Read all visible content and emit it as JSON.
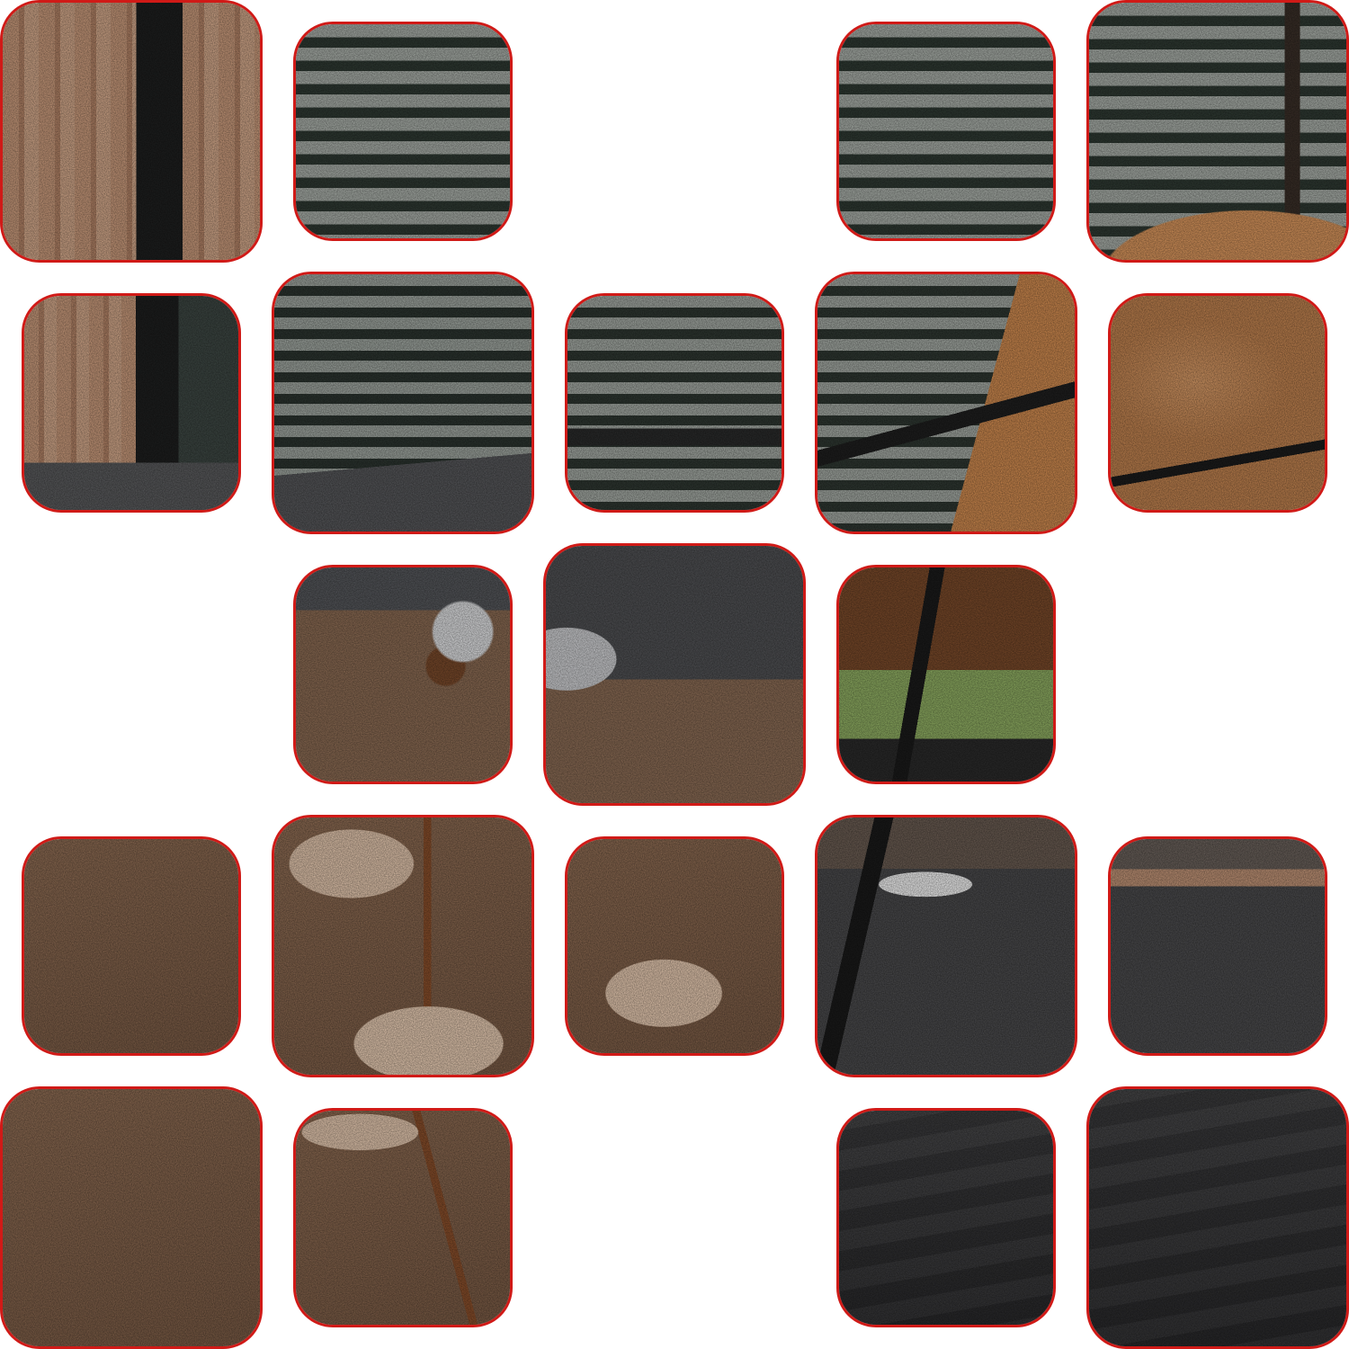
{
  "puzzle": {
    "type": "sliding-tile-puzzle",
    "rows": 5,
    "cols": 5,
    "empty_cells": [
      [
        0,
        2
      ],
      [
        2,
        0
      ],
      [
        2,
        4
      ],
      [
        4,
        2
      ]
    ],
    "colors": {
      "tile_border": "#d01a17",
      "background": "#ffffff",
      "wood": "#c89a7a",
      "blinds_light": "#9aa19a",
      "blinds_dark": "#2f3a33",
      "sofa_grey": "#4e4f51",
      "leather_tan": "#c98a55",
      "fabric_brown": "#8a6a52",
      "cotton_cream": "#e6c7ad",
      "floor_grey": "#3f3f41"
    },
    "tiles": [
      {
        "row": 0,
        "col": 0,
        "size": "large",
        "content": "wood-slats-and-window"
      },
      {
        "row": 0,
        "col": 1,
        "size": "small",
        "content": "window-blinds"
      },
      {
        "row": 0,
        "col": 3,
        "size": "small",
        "content": "window-blinds"
      },
      {
        "row": 0,
        "col": 4,
        "size": "large",
        "content": "blinds-and-tan-chair"
      },
      {
        "row": 1,
        "col": 0,
        "size": "small",
        "content": "wood-slats-and-sofa-edge"
      },
      {
        "row": 1,
        "col": 1,
        "size": "large",
        "content": "blinds-and-sofa-top"
      },
      {
        "row": 1,
        "col": 2,
        "size": "small",
        "content": "blinds-and-table-edge"
      },
      {
        "row": 1,
        "col": 3,
        "size": "large",
        "content": "blinds-and-chair-armrest"
      },
      {
        "row": 1,
        "col": 4,
        "size": "small",
        "content": "tan-chair-cushion"
      },
      {
        "row": 2,
        "col": 1,
        "size": "small",
        "content": "cotton-embroidery-top"
      },
      {
        "row": 2,
        "col": 2,
        "size": "large",
        "content": "sofa-arm-and-cushion"
      },
      {
        "row": 2,
        "col": 3,
        "size": "small",
        "content": "chair-leg-and-window"
      },
      {
        "row": 3,
        "col": 0,
        "size": "small",
        "content": "brown-fabric"
      },
      {
        "row": 3,
        "col": 1,
        "size": "large",
        "content": "cotton-embroidery-branch"
      },
      {
        "row": 3,
        "col": 2,
        "size": "small",
        "content": "cotton-embroidery-bloom"
      },
      {
        "row": 3,
        "col": 3,
        "size": "large",
        "content": "chair-leg-on-floor"
      },
      {
        "row": 3,
        "col": 4,
        "size": "small",
        "content": "floor-and-shelf"
      },
      {
        "row": 4,
        "col": 0,
        "size": "large",
        "content": "brown-fabric"
      },
      {
        "row": 4,
        "col": 1,
        "size": "small",
        "content": "cotton-embroidery-stem"
      },
      {
        "row": 4,
        "col": 3,
        "size": "small",
        "content": "grey-rug"
      },
      {
        "row": 4,
        "col": 4,
        "size": "large",
        "content": "grey-rug"
      }
    ]
  }
}
